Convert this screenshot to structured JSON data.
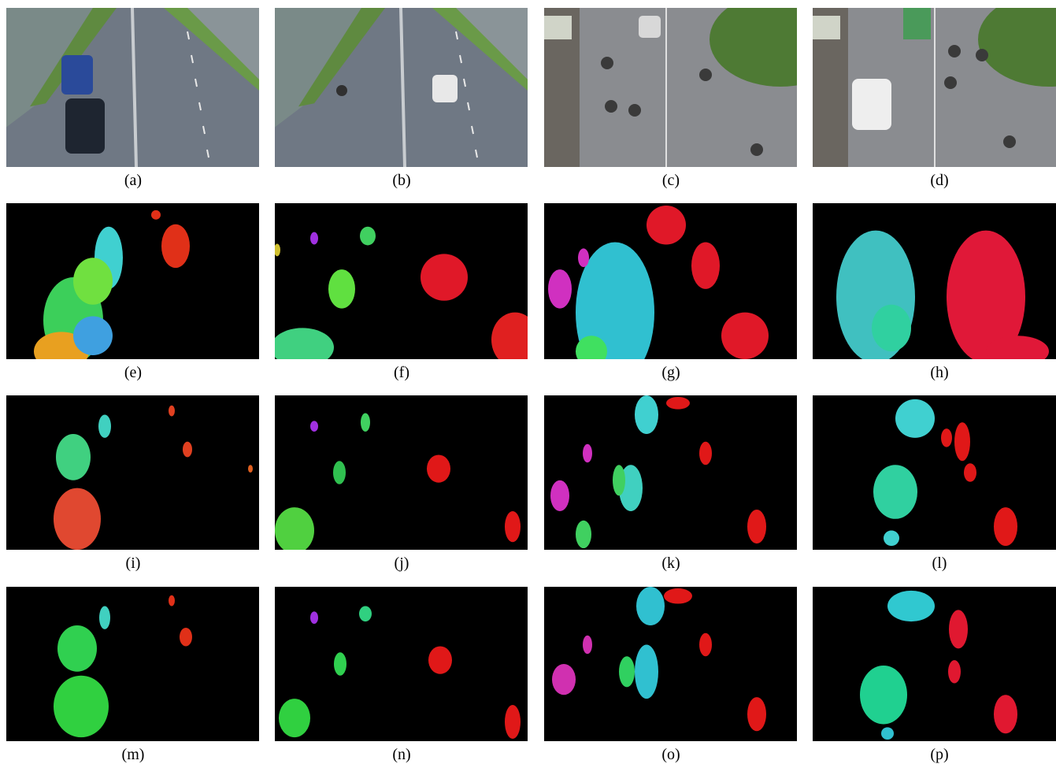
{
  "panels": [
    {
      "caption": "(a)"
    },
    {
      "caption": "(b)"
    },
    {
      "caption": "(c)"
    },
    {
      "caption": "(d)"
    },
    {
      "caption": "(e)"
    },
    {
      "caption": "(f)"
    },
    {
      "caption": "(g)"
    },
    {
      "caption": "(h)"
    },
    {
      "caption": "(i)"
    },
    {
      "caption": "(j)"
    },
    {
      "caption": "(k)"
    },
    {
      "caption": "(l)"
    },
    {
      "caption": "(m)"
    },
    {
      "caption": "(n)"
    },
    {
      "caption": "(o)"
    },
    {
      "caption": "(p)"
    }
  ]
}
